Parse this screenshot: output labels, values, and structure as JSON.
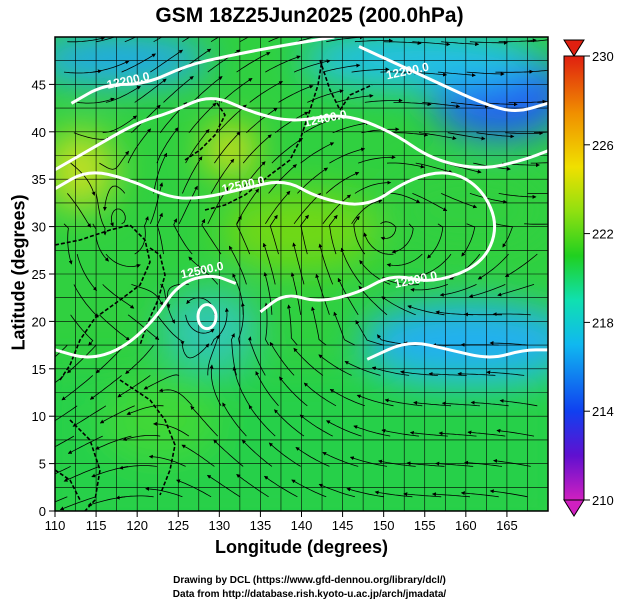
{
  "title": "GSM 18Z25Jun2025 (200.0hPa)",
  "credits": {
    "line1": "Drawing by DCL (https://www.gfd-dennou.org/library/dcl/)",
    "line2": "Data from http://database.rish.kyoto-u.ac.jp/arch/jmadata/"
  },
  "chart_data": {
    "type": "heatmap",
    "xlabel": "Longitude (degrees)",
    "ylabel": "Latitude  (degrees)",
    "xlim": [
      110,
      170
    ],
    "ylim": [
      0,
      50
    ],
    "x_ticks": [
      110,
      115,
      120,
      125,
      130,
      135,
      140,
      145,
      150,
      155,
      160,
      165
    ],
    "y_ticks": [
      0,
      5,
      10,
      15,
      20,
      25,
      30,
      35,
      40,
      45
    ],
    "colorbar": {
      "min": 210,
      "max": 230,
      "ticks": [
        210,
        214,
        218,
        222,
        226,
        230
      ],
      "colors": [
        "#d020c0",
        "#6010d0",
        "#1040f0",
        "#10b8f0",
        "#10e0b0",
        "#20d020",
        "#90e010",
        "#f0e000",
        "#f09000",
        "#e02010"
      ]
    },
    "contour_labels": [
      {
        "text": "12200.0",
        "lon": 119,
        "lat": 45
      },
      {
        "text": "12200.0",
        "lon": 153,
        "lat": 46
      },
      {
        "text": "12400.0",
        "lon": 143,
        "lat": 41
      },
      {
        "text": "12500.0",
        "lon": 133,
        "lat": 34
      },
      {
        "text": "12500.0",
        "lon": 128,
        "lat": 25
      },
      {
        "text": "12500.0",
        "lon": 154,
        "lat": 24
      }
    ],
    "contours": [
      {
        "level": 12200,
        "points": [
          [
            112,
            43
          ],
          [
            116,
            45
          ],
          [
            121,
            45
          ],
          [
            126,
            47
          ],
          [
            131,
            48
          ],
          [
            137,
            49
          ],
          [
            144,
            50
          ]
        ]
      },
      {
        "level": 12200,
        "points": [
          [
            147,
            49
          ],
          [
            152,
            47
          ],
          [
            157,
            45
          ],
          [
            162,
            43
          ],
          [
            166,
            42
          ],
          [
            170,
            43
          ]
        ]
      },
      {
        "level": 12400,
        "points": [
          [
            110,
            36
          ],
          [
            114,
            38
          ],
          [
            120,
            41
          ],
          [
            124,
            42
          ],
          [
            129,
            44
          ],
          [
            134,
            42
          ],
          [
            139,
            41
          ],
          [
            145,
            42
          ],
          [
            151,
            40
          ],
          [
            156,
            37
          ],
          [
            162,
            36
          ],
          [
            167,
            37
          ],
          [
            170,
            38
          ]
        ]
      },
      {
        "level": 12500,
        "points": [
          [
            110,
            34
          ],
          [
            114,
            36
          ],
          [
            119,
            35
          ],
          [
            124,
            33
          ],
          [
            128,
            33
          ],
          [
            133,
            34
          ],
          [
            138,
            35
          ],
          [
            142,
            33
          ],
          [
            148,
            32
          ],
          [
            153,
            35
          ],
          [
            158,
            36
          ],
          [
            162,
            34
          ],
          [
            164,
            30
          ],
          [
            162,
            26
          ],
          [
            156,
            24
          ],
          [
            151,
            25
          ],
          [
            147,
            23
          ],
          [
            142,
            22
          ],
          [
            138,
            23
          ],
          [
            135,
            21
          ]
        ]
      },
      {
        "level": 12500,
        "points": [
          [
            110,
            17
          ],
          [
            114,
            16
          ],
          [
            118,
            17
          ],
          [
            122,
            20
          ],
          [
            125,
            24
          ],
          [
            129,
            25
          ],
          [
            132,
            24
          ]
        ]
      },
      {
        "level": 12500,
        "points": [
          [
            148,
            16
          ],
          [
            153,
            18
          ],
          [
            158,
            17
          ],
          [
            163,
            16
          ],
          [
            167,
            17
          ],
          [
            170,
            17
          ]
        ]
      }
    ]
  }
}
